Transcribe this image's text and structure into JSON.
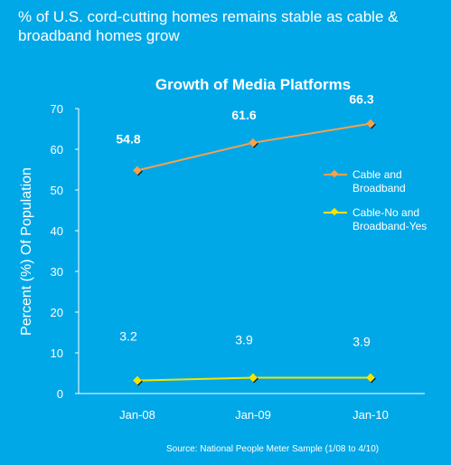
{
  "headline": "% of U.S. cord-cutting homes remains stable as cable & broadband homes grow",
  "source": "Source: National People Meter Sample (1/08 to  4/10)",
  "colors": {
    "background": "#00a8e8",
    "cable_broadband": "#f7a14c",
    "cable_no_broadband_yes": "#f5e400",
    "text": "#ffffff"
  },
  "chart_data": {
    "type": "line",
    "title": "Growth of Media Platforms",
    "xlabel": "",
    "ylabel": "Percent (%) Of Population",
    "categories": [
      "Jan-08",
      "Jan-09",
      "Jan-10"
    ],
    "ylim": [
      0,
      70
    ],
    "yticks": [
      "0",
      "10",
      "20",
      "30",
      "40",
      "50",
      "60",
      "70"
    ],
    "grid": false,
    "legend_position": "right",
    "series": [
      {
        "name": "Cable and Broadband",
        "values": [
          54.8,
          61.6,
          66.3
        ],
        "labels": [
          "54.8",
          "61.6",
          "66.3"
        ]
      },
      {
        "name": "Cable-No and Broadband-Yes",
        "values": [
          3.2,
          3.9,
          3.9
        ],
        "labels": [
          "3.2",
          "3.9",
          "3.9"
        ]
      }
    ],
    "legend": [
      "Cable and Broadband",
      "Cable-No and Broadband-Yes"
    ]
  }
}
